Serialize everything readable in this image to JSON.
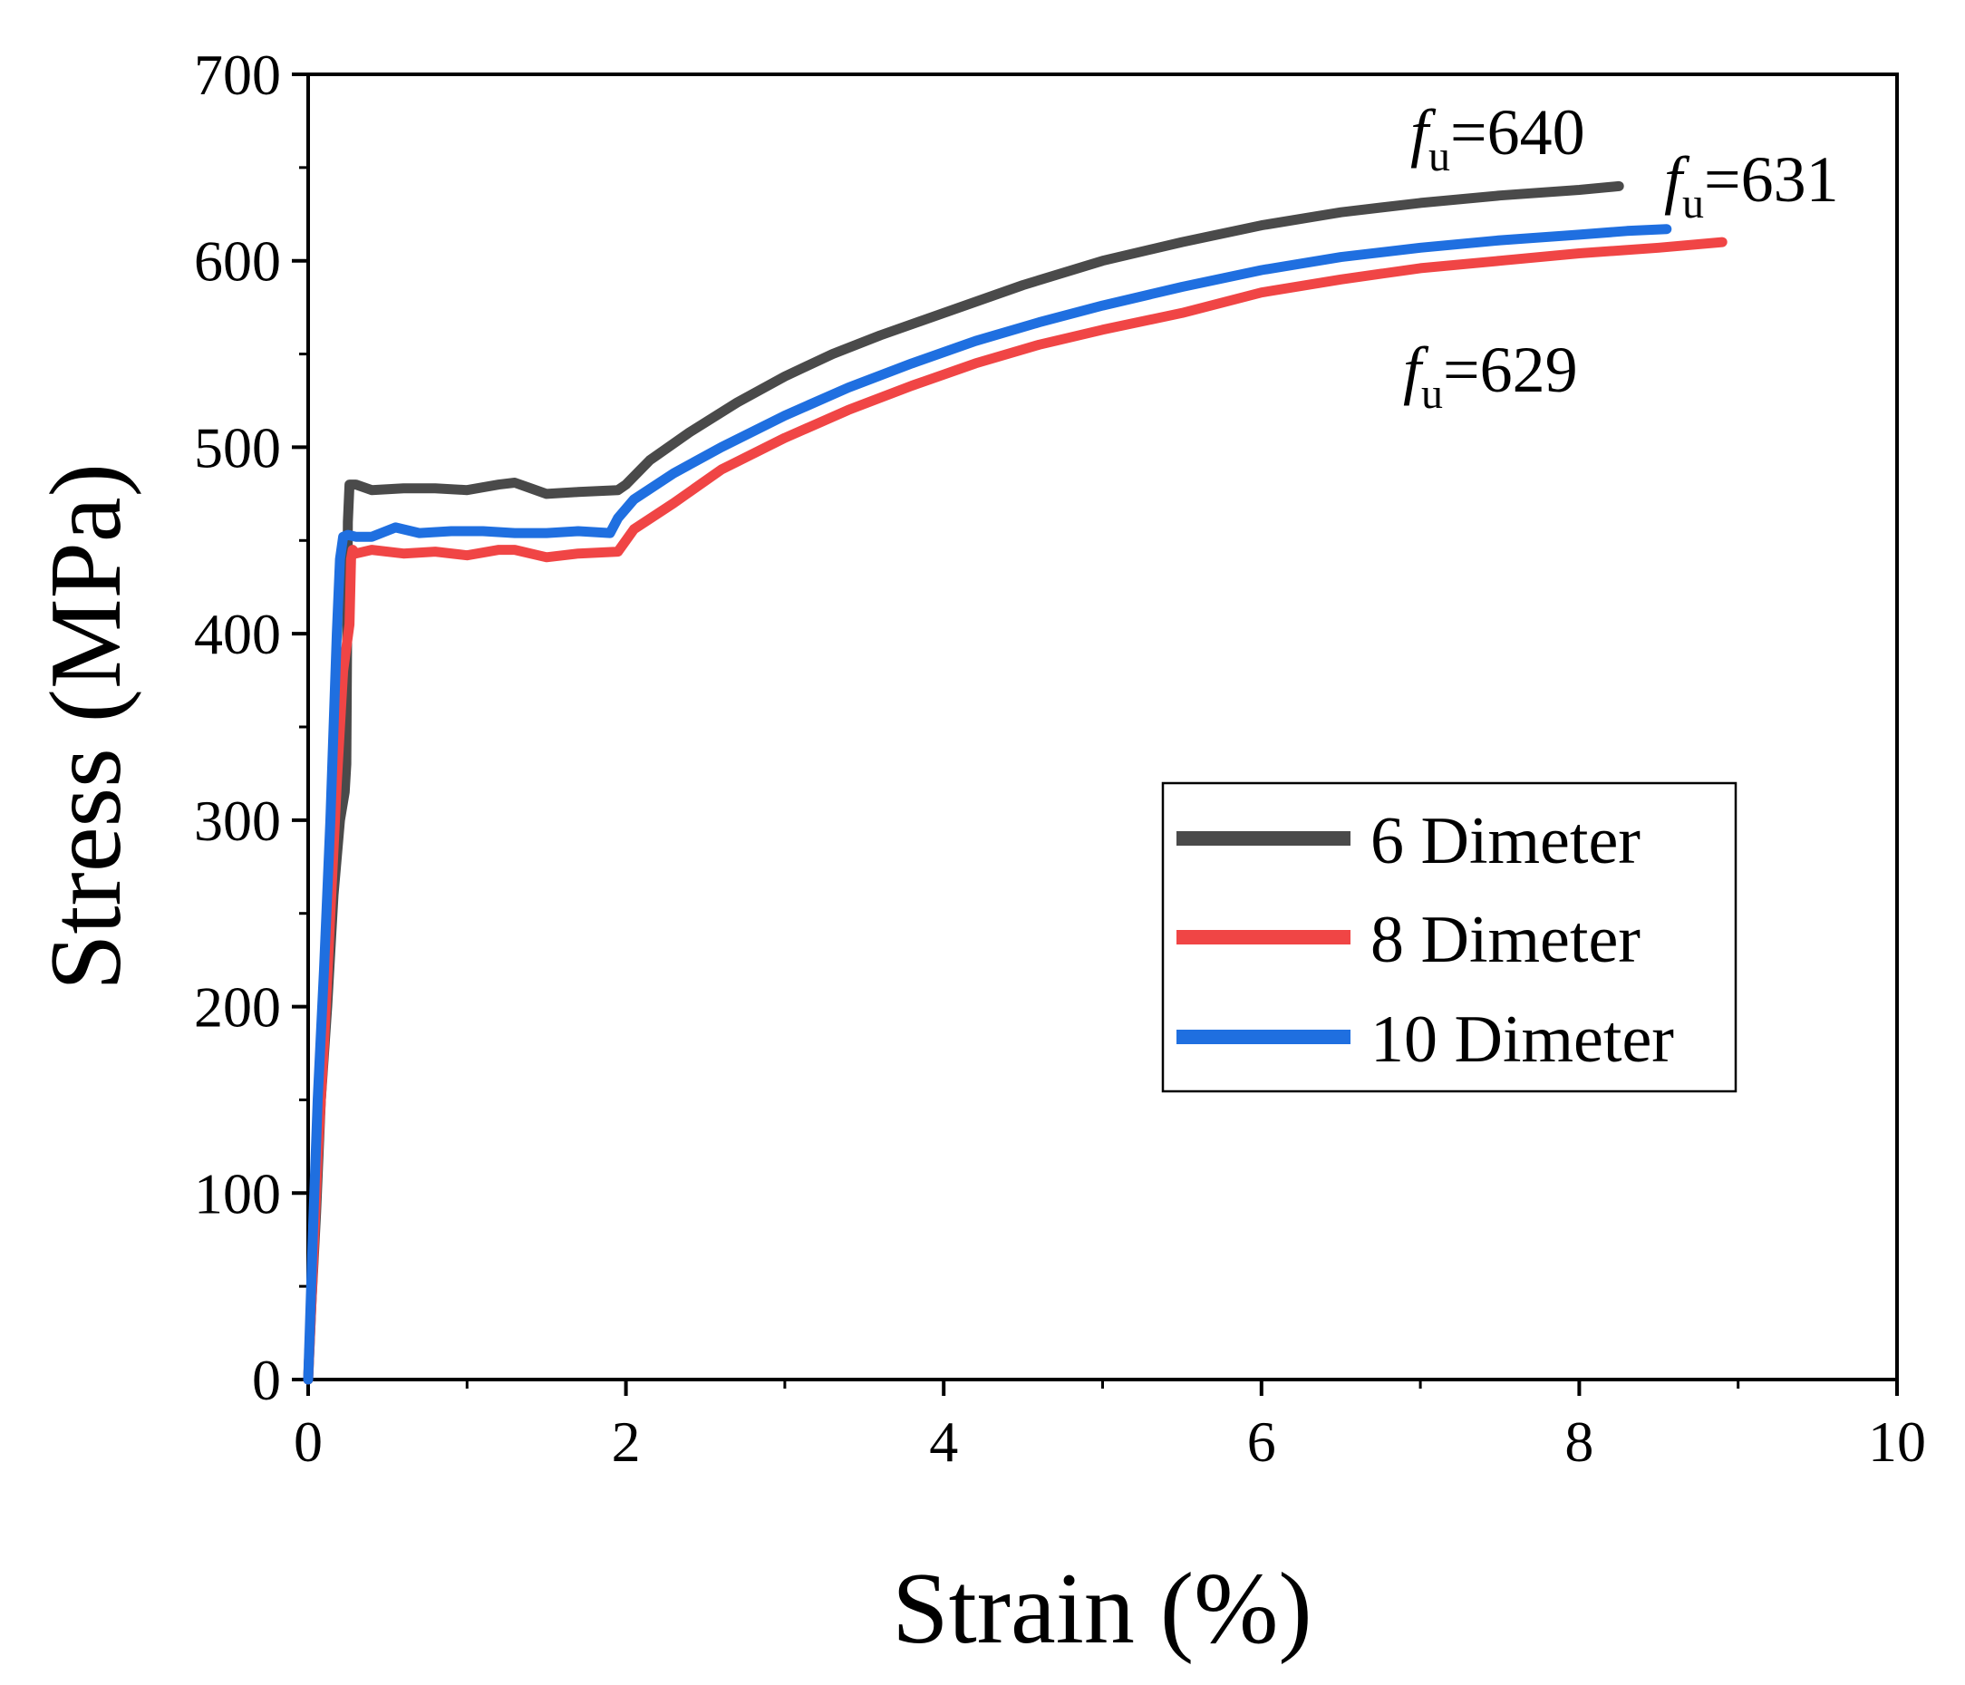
{
  "chart_data": {
    "type": "line",
    "title": "",
    "xlabel": "Strain (%)",
    "ylabel": "Stress (MPa)",
    "xlim": [
      0,
      10
    ],
    "ylim": [
      0,
      700
    ],
    "xticks": [
      0,
      2,
      4,
      6,
      8,
      10
    ],
    "yticks": [
      0,
      100,
      200,
      300,
      400,
      500,
      600,
      700
    ],
    "grid": false,
    "legend_position": "right-middle",
    "series": [
      {
        "name": "6 Dimeter",
        "color": "#4a4a4a",
        "x": [
          0,
          0.02,
          0.05,
          0.08,
          0.12,
          0.16,
          0.2,
          0.23,
          0.24,
          0.25,
          0.26,
          0.3,
          0.4,
          0.6,
          0.8,
          1.0,
          1.2,
          1.3,
          1.4,
          1.5,
          1.7,
          1.95,
          2.0,
          2.15,
          2.4,
          2.7,
          3.0,
          3.3,
          3.6,
          4.0,
          4.5,
          5.0,
          5.5,
          6.0,
          6.5,
          7.0,
          7.5,
          8.0,
          8.25
        ],
        "y": [
          0,
          40,
          90,
          150,
          200,
          260,
          300,
          315,
          330,
          460,
          480,
          480,
          477,
          478,
          478,
          477,
          480,
          481,
          478,
          475,
          476,
          477,
          480,
          493,
          508,
          524,
          538,
          550,
          560,
          572,
          587,
          600,
          610,
          619,
          626,
          631,
          635,
          638,
          640
        ]
      },
      {
        "name": "8 Dimeter",
        "color": "#f04545",
        "x": [
          0,
          0.03,
          0.06,
          0.1,
          0.14,
          0.18,
          0.22,
          0.26,
          0.27,
          0.28,
          0.3,
          0.4,
          0.6,
          0.8,
          1.0,
          1.2,
          1.3,
          1.5,
          1.7,
          1.95,
          2.05,
          2.3,
          2.6,
          3.0,
          3.4,
          3.8,
          4.2,
          4.6,
          5.0,
          5.5,
          6.0,
          6.5,
          7.0,
          7.5,
          8.0,
          8.5,
          8.9
        ],
        "y": [
          0,
          60,
          120,
          180,
          250,
          320,
          380,
          405,
          440,
          445,
          443,
          445,
          443,
          444,
          442,
          445,
          445,
          441,
          443,
          444,
          456,
          470,
          488,
          505,
          520,
          533,
          545,
          555,
          563,
          572,
          583,
          590,
          596,
          600,
          604,
          607,
          610
        ]
      },
      {
        "name": "10 Dimeter",
        "color": "#1f6fe0",
        "x": [
          0,
          0.03,
          0.06,
          0.1,
          0.14,
          0.18,
          0.2,
          0.22,
          0.25,
          0.3,
          0.4,
          0.55,
          0.7,
          0.9,
          1.1,
          1.3,
          1.5,
          1.7,
          1.9,
          1.95,
          2.05,
          2.3,
          2.6,
          3.0,
          3.4,
          3.8,
          4.2,
          4.6,
          5.0,
          5.5,
          6.0,
          6.5,
          7.0,
          7.5,
          8.0,
          8.3,
          8.55
        ],
        "y": [
          0,
          80,
          150,
          220,
          300,
          400,
          440,
          452,
          453,
          452,
          452,
          457,
          454,
          455,
          455,
          454,
          454,
          455,
          454,
          462,
          472,
          486,
          500,
          517,
          532,
          545,
          557,
          567,
          576,
          586,
          595,
          602,
          607,
          611,
          614,
          616,
          617
        ]
      }
    ],
    "annotations": [
      {
        "symbol": "f",
        "subscript": "u",
        "text": "=640",
        "series": "6 Dimeter"
      },
      {
        "symbol": "f",
        "subscript": "u",
        "text": "=631",
        "series": "10 Dimeter"
      },
      {
        "symbol": "f",
        "subscript": "u",
        "text": "=629",
        "series": "8 Dimeter"
      }
    ]
  }
}
